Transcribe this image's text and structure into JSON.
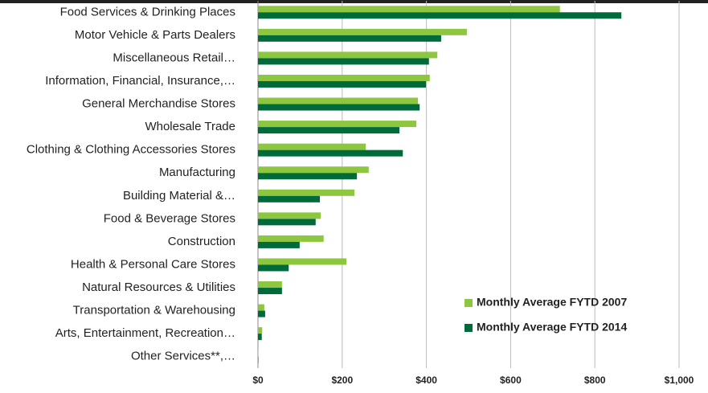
{
  "chart_data": {
    "type": "bar",
    "orientation": "horizontal",
    "categories": [
      "Food Services & Drinking Places",
      "Motor Vehicle & Parts Dealers",
      "Miscellaneous Retail…",
      "Information, Financial, Insurance,…",
      "General Merchandise Stores",
      "Wholesale Trade",
      "Clothing & Clothing Accessories Stores",
      "Manufacturing",
      "Building Material &…",
      "Food & Beverage Stores",
      "Construction",
      "Health & Personal Care Stores",
      "Natural Resources & Utilities",
      "Transportation & Warehousing",
      "Arts, Entertainment, Recreation…",
      "Other Services**,…"
    ],
    "series": [
      {
        "name": "Monthly Average FYTD 2007",
        "color": "#8dc63f",
        "values": [
          717,
          496,
          426,
          408,
          380,
          376,
          256,
          263,
          229,
          149,
          156,
          210,
          57,
          15,
          10,
          1
        ]
      },
      {
        "name": "Monthly Average FYTD 2014",
        "color": "#006b3a",
        "values": [
          863,
          435,
          406,
          399,
          384,
          336,
          344,
          235,
          147,
          137,
          99,
          73,
          57,
          17,
          9,
          1
        ]
      }
    ],
    "xlim": [
      0,
      1000
    ],
    "xticks": [
      {
        "value": 0,
        "label": "$0"
      },
      {
        "value": 200,
        "label": "$200"
      },
      {
        "value": 400,
        "label": "$400"
      },
      {
        "value": 600,
        "label": "$600"
      },
      {
        "value": 800,
        "label": "$800"
      },
      {
        "value": 1000,
        "label": "$1,000"
      }
    ],
    "grid": true,
    "legend": "lower right"
  }
}
